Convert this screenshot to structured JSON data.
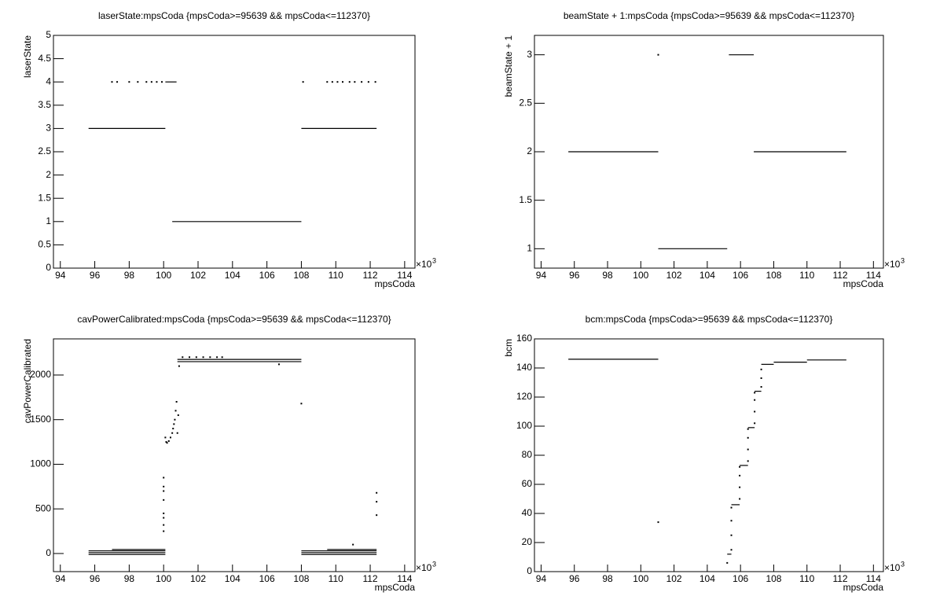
{
  "chart_data": [
    {
      "type": "scatter",
      "title": "laserState:mpsCoda {mpsCoda>=95639 && mpsCoda<=112370}",
      "x_label": "mpsCoda",
      "y_label": "laserState",
      "x_factor": "×10",
      "x_factor_power": "3",
      "xlim": [
        93.6,
        114.6
      ],
      "xticks": [
        94,
        96,
        98,
        100,
        102,
        104,
        106,
        108,
        110,
        112,
        114
      ],
      "ylim": [
        0,
        5
      ],
      "yticks": [
        0,
        0.5,
        1,
        1.5,
        2,
        2.5,
        3,
        3.5,
        4,
        4.5,
        5
      ],
      "series": [
        {
          "mode": "line",
          "color": "#000000",
          "x": [
            95.64,
            100.1
          ],
          "values": [
            3,
            3
          ]
        },
        {
          "mode": "line",
          "color": "#000000",
          "x": [
            100.5,
            108.0
          ],
          "values": [
            1,
            1
          ]
        },
        {
          "mode": "line",
          "color": "#000000",
          "x": [
            108.0,
            112.37
          ],
          "values": [
            3,
            3
          ]
        },
        {
          "mode": "line",
          "color": "#000000",
          "x": [
            100.1,
            100.75
          ],
          "values": [
            4,
            4
          ]
        },
        {
          "mode": "markers",
          "color": "#000000",
          "x": [
            97.0,
            97.3,
            98.0,
            98.5,
            99.0,
            99.3,
            99.6,
            99.9,
            108.1,
            109.5,
            109.8,
            110.1,
            110.4,
            110.8,
            111.1,
            111.5,
            111.9,
            112.3
          ],
          "values": [
            4,
            4,
            4,
            4,
            4,
            4,
            4,
            4,
            4,
            4,
            4,
            4,
            4,
            4,
            4,
            4,
            4,
            4
          ]
        }
      ]
    },
    {
      "type": "scatter",
      "title": "beamState + 1:mpsCoda {mpsCoda>=95639 && mpsCoda<=112370}",
      "x_label": "mpsCoda",
      "y_label": "beamState + 1",
      "x_factor": "×10",
      "x_factor_power": "3",
      "xlim": [
        93.6,
        114.6
      ],
      "xticks": [
        94,
        96,
        98,
        100,
        102,
        104,
        106,
        108,
        110,
        112,
        114
      ],
      "ylim": [
        0.8,
        3.2
      ],
      "yticks": [
        1,
        1.5,
        2,
        2.5,
        3
      ],
      "series": [
        {
          "mode": "line",
          "color": "#000000",
          "x": [
            95.64,
            101.05
          ],
          "values": [
            2,
            2
          ]
        },
        {
          "mode": "line",
          "color": "#000000",
          "x": [
            101.05,
            105.2
          ],
          "values": [
            1,
            1
          ]
        },
        {
          "mode": "line",
          "color": "#000000",
          "x": [
            105.3,
            106.8
          ],
          "values": [
            3,
            3
          ]
        },
        {
          "mode": "line",
          "color": "#000000",
          "x": [
            106.8,
            112.37
          ],
          "values": [
            2,
            2
          ]
        },
        {
          "mode": "markers",
          "color": "#000000",
          "x": [
            101.05
          ],
          "values": [
            3
          ]
        }
      ]
    },
    {
      "type": "scatter",
      "title": "cavPowerCalibrated:mpsCoda {mpsCoda>=95639 && mpsCoda<=112370}",
      "x_label": "mpsCoda",
      "y_label": "cavPowerCalibrated",
      "x_factor": "×10",
      "x_factor_power": "3",
      "xlim": [
        93.6,
        114.6
      ],
      "xticks": [
        94,
        96,
        98,
        100,
        102,
        104,
        106,
        108,
        110,
        112,
        114
      ],
      "ylim": [
        -203,
        2405
      ],
      "yticks": [
        0,
        500,
        1000,
        1500,
        2000
      ],
      "series": [
        {
          "mode": "line",
          "color": "#000000",
          "x": [
            95.64,
            100.1
          ],
          "values": [
            -10,
            -10
          ]
        },
        {
          "mode": "line",
          "color": "#000000",
          "x": [
            95.64,
            100.1
          ],
          "values": [
            10,
            10
          ]
        },
        {
          "mode": "line",
          "color": "#000000",
          "x": [
            95.64,
            100.1
          ],
          "values": [
            30,
            30
          ]
        },
        {
          "mode": "line",
          "color": "#000000",
          "x": [
            97.0,
            100.1
          ],
          "values": [
            45,
            45
          ]
        },
        {
          "mode": "line",
          "color": "#000000",
          "x": [
            108.0,
            112.37
          ],
          "values": [
            -10,
            -10
          ]
        },
        {
          "mode": "line",
          "color": "#000000",
          "x": [
            108.0,
            112.37
          ],
          "values": [
            10,
            10
          ]
        },
        {
          "mode": "line",
          "color": "#000000",
          "x": [
            108.0,
            112.37
          ],
          "values": [
            30,
            30
          ]
        },
        {
          "mode": "line",
          "color": "#000000",
          "x": [
            109.5,
            112.37
          ],
          "values": [
            45,
            45
          ]
        },
        {
          "mode": "line",
          "color": "#000000",
          "x": [
            100.8,
            108.0
          ],
          "values": [
            2150,
            2150
          ]
        },
        {
          "mode": "line",
          "color": "#000000",
          "x": [
            100.8,
            108.0
          ],
          "values": [
            2175,
            2175
          ]
        },
        {
          "mode": "markers",
          "color": "#000000",
          "x": [
            101.1,
            101.5,
            101.9,
            102.3,
            102.7,
            103.1,
            103.4,
            100.0,
            100.0,
            100.0,
            100.0,
            100.0,
            100.0,
            100.0,
            100.0,
            100.1,
            100.15,
            100.2,
            100.3,
            100.4,
            100.5,
            100.55,
            100.6,
            100.65,
            100.7,
            100.75,
            100.8,
            100.85,
            100.9,
            108.0,
            112.37,
            112.37,
            112.37,
            106.7,
            111.0
          ],
          "values": [
            2200,
            2200,
            2200,
            2200,
            2200,
            2200,
            2200,
            250,
            320,
            400,
            450,
            600,
            700,
            750,
            850,
            1300,
            1250,
            1240,
            1260,
            1300,
            1350,
            1400,
            1450,
            1500,
            1600,
            1700,
            1350,
            1550,
            2100,
            1680,
            430,
            580,
            680,
            2120,
            100
          ]
        }
      ]
    },
    {
      "type": "scatter",
      "title": "bcm:mpsCoda {mpsCoda>=95639 && mpsCoda<=112370}",
      "x_label": "mpsCoda",
      "y_label": "bcm",
      "x_factor": "×10",
      "x_factor_power": "3",
      "xlim": [
        93.6,
        114.6
      ],
      "xticks": [
        94,
        96,
        98,
        100,
        102,
        104,
        106,
        108,
        110,
        112,
        114
      ],
      "ylim": [
        0,
        160
      ],
      "yticks": [
        0,
        20,
        40,
        60,
        80,
        100,
        120,
        140,
        160
      ],
      "series": [
        {
          "mode": "line",
          "color": "#000000",
          "x": [
            95.64,
            101.05
          ],
          "values": [
            146,
            146
          ]
        },
        {
          "mode": "line",
          "color": "#000000",
          "x": [
            105.2,
            105.45
          ],
          "values": [
            12,
            12
          ]
        },
        {
          "mode": "line",
          "color": "#000000",
          "x": [
            105.45,
            105.95
          ],
          "values": [
            46,
            46
          ]
        },
        {
          "mode": "line",
          "color": "#000000",
          "x": [
            105.95,
            106.45
          ],
          "values": [
            73,
            73
          ]
        },
        {
          "mode": "line",
          "color": "#000000",
          "x": [
            106.45,
            106.85
          ],
          "values": [
            99,
            99
          ]
        },
        {
          "mode": "line",
          "color": "#000000",
          "x": [
            106.85,
            107.25
          ],
          "values": [
            124,
            124
          ]
        },
        {
          "mode": "line",
          "color": "#000000",
          "x": [
            107.25,
            108.0
          ],
          "values": [
            142.5,
            142.5
          ]
        },
        {
          "mode": "line",
          "color": "#000000",
          "x": [
            108.0,
            110.0
          ],
          "values": [
            144,
            144
          ]
        },
        {
          "mode": "line",
          "color": "#000000",
          "x": [
            110.0,
            112.37
          ],
          "values": [
            145.5,
            145.5
          ]
        },
        {
          "mode": "markers",
          "color": "#000000",
          "x": [
            105.2,
            105.45,
            105.45,
            105.45,
            105.45,
            105.95,
            105.95,
            105.95,
            105.95,
            106.45,
            106.45,
            106.45,
            106.45,
            106.85,
            106.85,
            106.85,
            106.85,
            107.25,
            107.25,
            107.25,
            101.05
          ],
          "values": [
            6,
            15,
            25,
            35,
            44,
            50,
            58,
            66,
            72,
            76,
            84,
            92,
            98,
            102,
            110,
            118,
            123,
            127,
            133,
            139,
            34
          ]
        }
      ]
    }
  ]
}
